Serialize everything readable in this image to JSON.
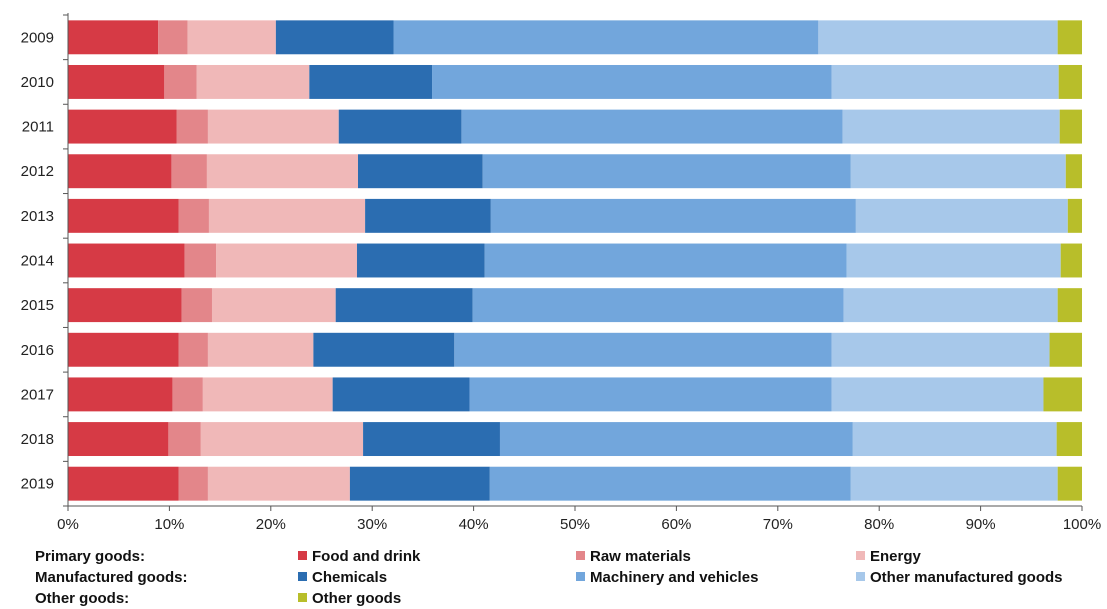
{
  "chart_data": {
    "type": "bar",
    "orientation": "horizontal",
    "stacked": true,
    "categories": [
      "2009",
      "2010",
      "2011",
      "2012",
      "2013",
      "2014",
      "2015",
      "2016",
      "2017",
      "2018",
      "2019"
    ],
    "x_ticks": [
      "0%",
      "10%",
      "20%",
      "30%",
      "40%",
      "50%",
      "60%",
      "70%",
      "80%",
      "90%",
      "100%"
    ],
    "xlim": [
      0,
      100
    ],
    "series": [
      {
        "name": "Food and drink",
        "color": "#d63a45",
        "values": [
          8.9,
          9.5,
          10.7,
          10.2,
          10.9,
          11.5,
          11.2,
          10.9,
          10.3,
          9.9,
          10.9
        ]
      },
      {
        "name": "Raw materials",
        "color": "#e3868a",
        "values": [
          2.9,
          3.2,
          3.1,
          3.5,
          3.0,
          3.1,
          3.0,
          2.9,
          3.0,
          3.2,
          2.9
        ]
      },
      {
        "name": "Energy",
        "color": "#f0b8b8",
        "values": [
          8.7,
          11.1,
          12.9,
          14.9,
          15.4,
          13.9,
          12.2,
          10.4,
          12.8,
          16.0,
          14.0
        ]
      },
      {
        "name": "Chemicals",
        "color": "#2b6db1",
        "values": [
          11.6,
          12.1,
          12.1,
          12.3,
          12.4,
          12.6,
          13.5,
          13.9,
          13.5,
          13.5,
          13.8
        ]
      },
      {
        "name": "Machinery and vehicles",
        "color": "#72a6dc",
        "values": [
          41.9,
          39.4,
          37.6,
          36.3,
          36.0,
          35.7,
          36.6,
          37.2,
          35.7,
          34.8,
          35.6
        ]
      },
      {
        "name": "Other manufactured goods",
        "color": "#a7c8ea",
        "values": [
          23.6,
          22.4,
          21.4,
          21.2,
          20.9,
          21.1,
          21.1,
          21.5,
          20.9,
          20.1,
          20.4
        ]
      },
      {
        "name": "Other goods",
        "color": "#b8be2a",
        "values": [
          2.4,
          2.3,
          2.2,
          1.6,
          1.4,
          2.1,
          2.4,
          3.2,
          3.8,
          2.5,
          2.4
        ]
      }
    ],
    "grid": false,
    "legend_position": "bottom"
  },
  "legend": {
    "groups": [
      {
        "label": "Primary goods:",
        "items": [
          "Food and drink",
          "Raw materials",
          "Energy"
        ]
      },
      {
        "label": "Manufactured goods:",
        "items": [
          "Chemicals",
          "Machinery and vehicles",
          "Other manufactured goods"
        ]
      },
      {
        "label": "Other goods:",
        "items": [
          "Other goods"
        ]
      }
    ]
  }
}
